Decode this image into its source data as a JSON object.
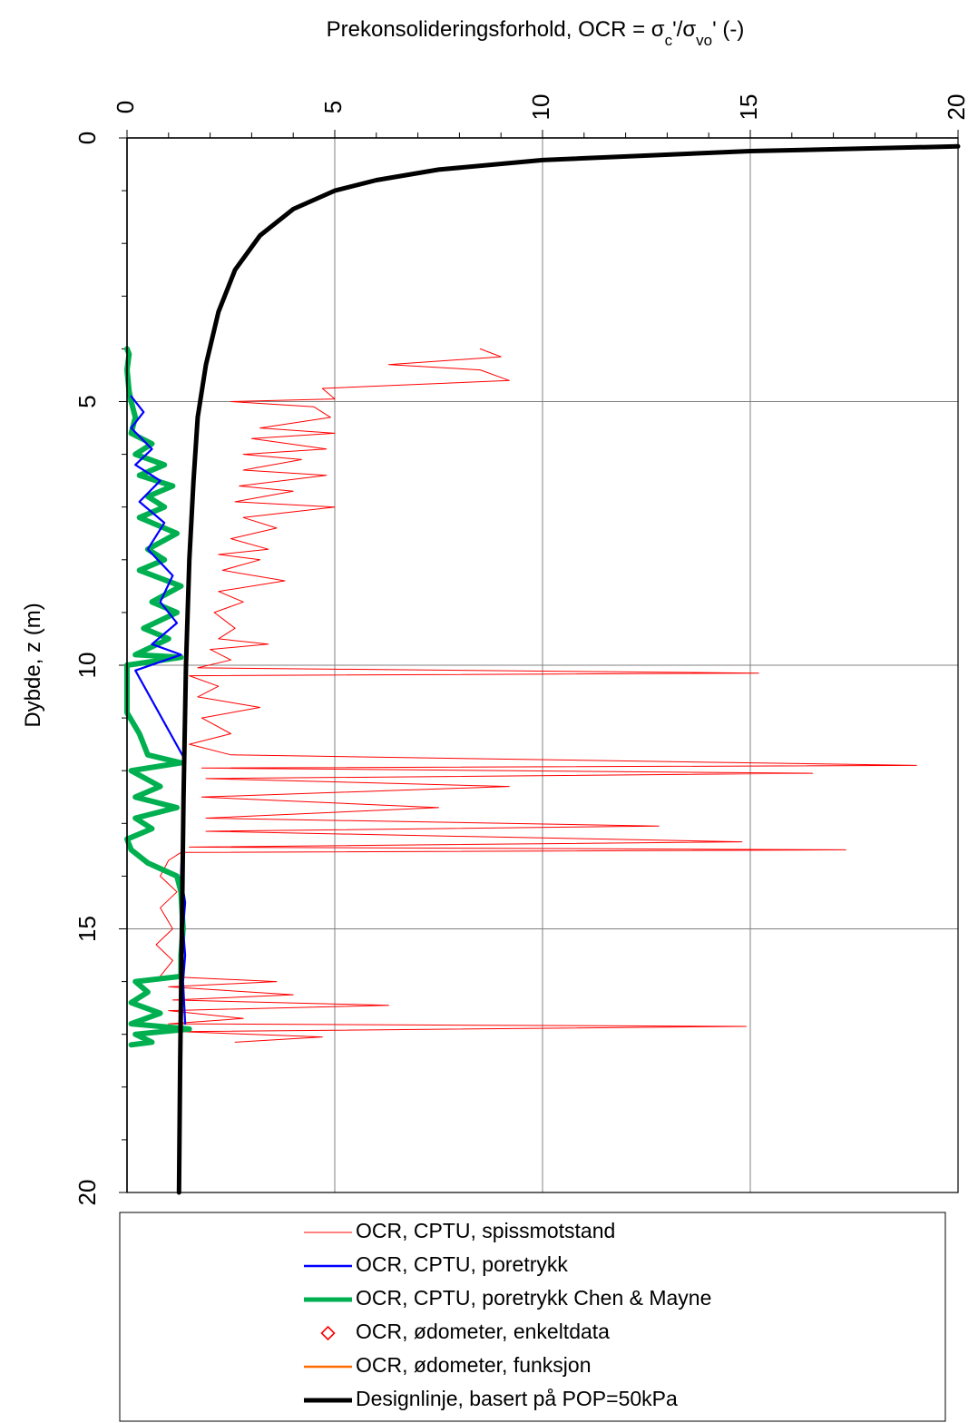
{
  "chart_data": {
    "type": "line",
    "title": "Prekonsolideringsforhold, OCR = σc'/σvo' (-)",
    "title_parts": {
      "main": "Prekonsolideringsforhold, OCR = σ",
      "sub1": "c",
      "mid": "'/σ",
      "sub2": "vo",
      "end": "' (-)"
    },
    "xlabel": "Prekonsolideringsforhold, OCR = σc'/σvo' (-)",
    "ylabel": "Dybde, z (m)",
    "xlim": [
      0,
      20
    ],
    "ylim": [
      0,
      20
    ],
    "x_ticks": [
      "0",
      "5",
      "10",
      "15",
      "20"
    ],
    "y_ticks": [
      "0",
      "5",
      "10",
      "15",
      "20"
    ],
    "x_axis_position": "top",
    "y_axis_inverted": true,
    "grid": true,
    "legend_position": "bottom",
    "series": [
      {
        "name": "OCR, CPTU, spissmotstand",
        "color": "#ff0000",
        "style": "thin-line",
        "points": [
          [
            8.5,
            4.0
          ],
          [
            9.0,
            4.15
          ],
          [
            6.3,
            4.3
          ],
          [
            8.5,
            4.4
          ],
          [
            9.2,
            4.6
          ],
          [
            4.7,
            4.75
          ],
          [
            5.0,
            4.95
          ],
          [
            2.5,
            5.0
          ],
          [
            4.5,
            5.1
          ],
          [
            4.9,
            5.3
          ],
          [
            3.2,
            5.5
          ],
          [
            5.0,
            5.6
          ],
          [
            3.0,
            5.7
          ],
          [
            4.8,
            5.9
          ],
          [
            2.8,
            6.0
          ],
          [
            4.2,
            6.1
          ],
          [
            2.8,
            6.3
          ],
          [
            4.8,
            6.4
          ],
          [
            2.7,
            6.6
          ],
          [
            4.0,
            6.7
          ],
          [
            2.6,
            6.9
          ],
          [
            5.0,
            7.0
          ],
          [
            2.8,
            7.2
          ],
          [
            3.6,
            7.4
          ],
          [
            2.5,
            7.6
          ],
          [
            3.4,
            7.8
          ],
          [
            2.2,
            7.9
          ],
          [
            3.2,
            8.0
          ],
          [
            2.3,
            8.2
          ],
          [
            3.8,
            8.4
          ],
          [
            2.2,
            8.6
          ],
          [
            2.8,
            8.8
          ],
          [
            2.1,
            9.0
          ],
          [
            2.6,
            9.3
          ],
          [
            2.2,
            9.5
          ],
          [
            3.4,
            9.6
          ],
          [
            2.0,
            9.7
          ],
          [
            2.5,
            9.9
          ],
          [
            1.7,
            10.05
          ],
          [
            15.2,
            10.15
          ],
          [
            1.5,
            10.2
          ],
          [
            2.2,
            10.4
          ],
          [
            1.7,
            10.6
          ],
          [
            3.2,
            10.8
          ],
          [
            1.8,
            11.0
          ],
          [
            2.5,
            11.3
          ],
          [
            1.5,
            11.5
          ],
          [
            2.5,
            11.7
          ],
          [
            19.0,
            11.9
          ],
          [
            1.8,
            11.95
          ],
          [
            16.5,
            12.05
          ],
          [
            1.9,
            12.15
          ],
          [
            9.2,
            12.3
          ],
          [
            1.8,
            12.5
          ],
          [
            7.5,
            12.7
          ],
          [
            1.9,
            12.9
          ],
          [
            12.8,
            13.05
          ],
          [
            1.9,
            13.15
          ],
          [
            8.3,
            13.25
          ],
          [
            14.8,
            13.35
          ],
          [
            1.5,
            13.45
          ],
          [
            17.3,
            13.5
          ],
          [
            1.3,
            13.55
          ],
          [
            1.0,
            13.7
          ],
          [
            0.8,
            14.0
          ],
          [
            1.2,
            14.3
          ],
          [
            0.8,
            14.6
          ],
          [
            1.1,
            15.0
          ],
          [
            0.7,
            15.3
          ],
          [
            1.1,
            15.6
          ],
          [
            0.8,
            15.9
          ],
          [
            3.6,
            16.0
          ],
          [
            1.0,
            16.1
          ],
          [
            4.0,
            16.25
          ],
          [
            1.1,
            16.35
          ],
          [
            6.3,
            16.45
          ],
          [
            1.0,
            16.55
          ],
          [
            2.8,
            16.7
          ],
          [
            1.0,
            16.8
          ],
          [
            14.9,
            16.85
          ],
          [
            1.3,
            16.95
          ],
          [
            4.7,
            17.05
          ],
          [
            2.6,
            17.15
          ]
        ]
      },
      {
        "name": "OCR, CPTU, poretrykk",
        "color": "#0000ff",
        "style": "line",
        "points": [
          [
            0.1,
            4.9
          ],
          [
            0.4,
            5.2
          ],
          [
            0.1,
            5.5
          ],
          [
            0.6,
            5.9
          ],
          [
            0.2,
            6.2
          ],
          [
            0.8,
            6.5
          ],
          [
            0.3,
            6.9
          ],
          [
            0.9,
            7.3
          ],
          [
            0.5,
            7.8
          ],
          [
            1.1,
            8.3
          ],
          [
            0.8,
            8.8
          ],
          [
            1.2,
            9.2
          ],
          [
            0.6,
            9.6
          ],
          [
            1.3,
            9.8
          ],
          [
            0.2,
            10.1
          ],
          [
            1.4,
            11.8
          ],
          [
            1.3,
            14.0
          ],
          [
            1.4,
            14.5
          ],
          [
            1.35,
            15.0
          ],
          [
            1.4,
            15.5
          ],
          [
            1.35,
            16.0
          ],
          [
            1.4,
            16.8
          ]
        ]
      },
      {
        "name": "OCR, CPTU, poretrykk Chen & Mayne",
        "color": "#00b050",
        "style": "thick-line",
        "points": [
          [
            0.0,
            4.0
          ],
          [
            0.05,
            4.1
          ],
          [
            0.0,
            4.4
          ],
          [
            0.05,
            4.8
          ],
          [
            0.1,
            5.0
          ],
          [
            0.2,
            5.3
          ],
          [
            0.1,
            5.6
          ],
          [
            0.6,
            5.8
          ],
          [
            0.2,
            6.0
          ],
          [
            0.9,
            6.2
          ],
          [
            0.3,
            6.4
          ],
          [
            1.1,
            6.6
          ],
          [
            0.5,
            6.8
          ],
          [
            0.9,
            7.0
          ],
          [
            0.3,
            7.2
          ],
          [
            1.2,
            7.5
          ],
          [
            0.5,
            7.8
          ],
          [
            0.9,
            8.0
          ],
          [
            0.3,
            8.2
          ],
          [
            1.3,
            8.5
          ],
          [
            0.6,
            8.8
          ],
          [
            1.2,
            9.0
          ],
          [
            0.4,
            9.3
          ],
          [
            1.0,
            9.5
          ],
          [
            0.2,
            9.8
          ],
          [
            1.3,
            9.85
          ],
          [
            0.0,
            10.0
          ],
          [
            0.0,
            10.9
          ],
          [
            0.3,
            11.3
          ],
          [
            0.5,
            11.7
          ],
          [
            1.3,
            11.85
          ],
          [
            0.1,
            12.0
          ],
          [
            0.8,
            12.3
          ],
          [
            0.2,
            12.5
          ],
          [
            1.2,
            12.7
          ],
          [
            0.2,
            12.9
          ],
          [
            0.6,
            13.1
          ],
          [
            0.0,
            13.3
          ],
          [
            0.1,
            13.5
          ],
          [
            0.5,
            13.75
          ],
          [
            1.2,
            14.0
          ],
          [
            1.3,
            14.3
          ],
          [
            1.35,
            15.0
          ],
          [
            1.3,
            15.5
          ],
          [
            1.3,
            15.9
          ],
          [
            0.2,
            16.0
          ],
          [
            0.5,
            16.2
          ],
          [
            0.1,
            16.4
          ],
          [
            0.8,
            16.6
          ],
          [
            0.1,
            16.8
          ],
          [
            1.5,
            16.9
          ],
          [
            0.2,
            17.0
          ],
          [
            0.6,
            17.15
          ],
          [
            0.1,
            17.2
          ]
        ]
      },
      {
        "name": "OCR, ødometer, enkeltdata",
        "color": "#ff0000",
        "style": "diamond-marker",
        "points": []
      },
      {
        "name": "OCR, ødometer, funksjon",
        "color": "#ff6a00",
        "style": "line",
        "points": []
      },
      {
        "name": "Designlinje, basert på POP=50kPa",
        "color": "#000000",
        "style": "thick-line",
        "points": [
          [
            20.0,
            0.16
          ],
          [
            15.0,
            0.25
          ],
          [
            10.0,
            0.42
          ],
          [
            7.5,
            0.6
          ],
          [
            6.0,
            0.8
          ],
          [
            5.0,
            1.0
          ],
          [
            4.0,
            1.35
          ],
          [
            3.2,
            1.85
          ],
          [
            2.6,
            2.5
          ],
          [
            2.2,
            3.3
          ],
          [
            1.9,
            4.3
          ],
          [
            1.7,
            5.3
          ],
          [
            1.6,
            6.5
          ],
          [
            1.5,
            8.0
          ],
          [
            1.42,
            10.0
          ],
          [
            1.36,
            12.5
          ],
          [
            1.32,
            15.0
          ],
          [
            1.28,
            17.5
          ],
          [
            1.25,
            20.0
          ]
        ]
      }
    ]
  }
}
